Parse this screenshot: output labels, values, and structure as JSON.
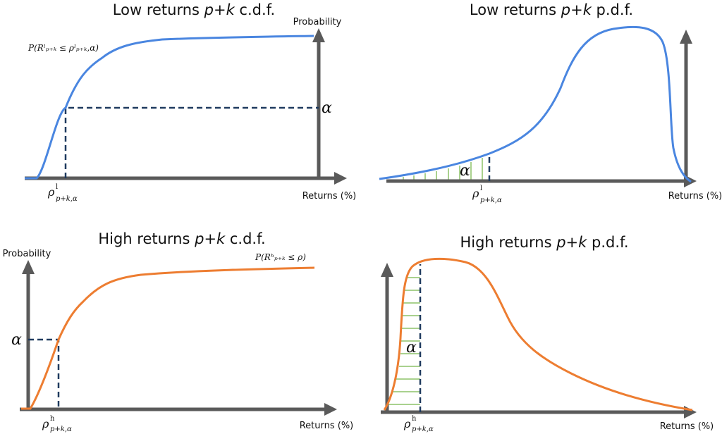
{
  "colors": {
    "low_curve": "#4a86e0",
    "high_curve": "#ed7d31",
    "axis": "#5a5a5a",
    "dashed": "#1f3a5f",
    "hatch": "#a9d18e"
  },
  "panels": {
    "low_cdf": {
      "title_pre": "Low returns ",
      "title_var": "p+k",
      "title_post": " c.d.f.",
      "ylabel": "Probability",
      "xlabel": "Returns (%)",
      "curve_label": "P(Rˡₚ₊ₖ ≤ ρˡₚ₊ₖ,α)",
      "alpha": "α",
      "quantile_label": "ρ",
      "quantile_sup": "l",
      "quantile_sub": "p+k,α"
    },
    "low_pdf": {
      "title_pre": "Low returns ",
      "title_var": "p+k",
      "title_post": " p.d.f.",
      "xlabel": "Returns (%)",
      "alpha": "α",
      "quantile_label": "ρ",
      "quantile_sup": "l",
      "quantile_sub": "p+k,α"
    },
    "high_cdf": {
      "title_pre": "High returns ",
      "title_var": "p+k",
      "title_post": " c.d.f.",
      "ylabel": "Probability",
      "xlabel": "Returns (%)",
      "curve_label": "P(Rʰₚ₊ₖ ≤ ρ)",
      "alpha": "α",
      "quantile_label": "ρ",
      "quantile_sup": "h",
      "quantile_sub": "p+k,α"
    },
    "high_pdf": {
      "title_pre": "High returns ",
      "title_var": "p+k",
      "title_post": " p.d.f.",
      "xlabel": "Returns (%)",
      "alpha": "α",
      "quantile_label": "ρ",
      "quantile_sup": "h",
      "quantile_sub": "p+k,α"
    }
  }
}
